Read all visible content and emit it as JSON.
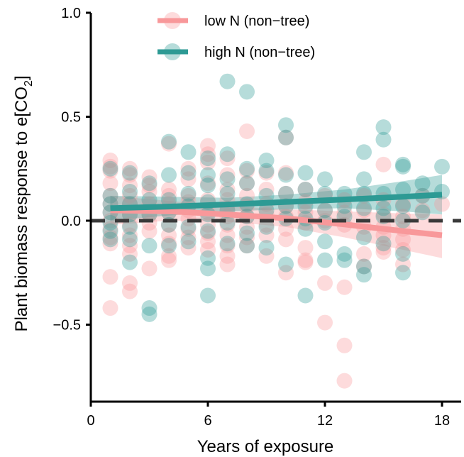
{
  "chart_data": {
    "type": "scatter",
    "title": "",
    "xlabel": "Years of exposure",
    "ylabel_main": "Plant biomass response to e[CO",
    "ylabel_sub": "2",
    "ylabel_close": "]",
    "xlim": [
      0,
      19
    ],
    "ylim": [
      -0.87,
      1.0
    ],
    "xticks": [
      0,
      6,
      12,
      18
    ],
    "xtick_labels": [
      "0",
      "6",
      "12",
      "18"
    ],
    "yticks": [
      1.0,
      0.5,
      0.0,
      -0.5
    ],
    "ytick_labels": [
      "1.0",
      "0.5",
      "0.0",
      "−0.5"
    ],
    "reference_line_y": 0,
    "grid": false,
    "legend_position": "top",
    "series": [
      {
        "name": "low N (non−tree)",
        "color": "#F8989A",
        "points": [
          [
            1,
            0.29
          ],
          [
            1,
            0.26
          ],
          [
            1,
            0.24
          ],
          [
            1,
            0.18
          ],
          [
            1,
            0.12
          ],
          [
            1,
            0.08
          ],
          [
            1,
            0.04
          ],
          [
            1,
            0.0
          ],
          [
            1,
            -0.04
          ],
          [
            1,
            -0.08
          ],
          [
            1,
            -0.11
          ],
          [
            1,
            -0.27
          ],
          [
            1,
            -0.42
          ],
          [
            2,
            0.25
          ],
          [
            2,
            0.22
          ],
          [
            2,
            0.17
          ],
          [
            2,
            0.12
          ],
          [
            2,
            0.08
          ],
          [
            2,
            0.03
          ],
          [
            2,
            -0.02
          ],
          [
            2,
            -0.07
          ],
          [
            2,
            -0.12
          ],
          [
            2,
            -0.16
          ],
          [
            2,
            -0.3
          ],
          [
            2,
            -0.34
          ],
          [
            3,
            0.21
          ],
          [
            3,
            0.17
          ],
          [
            3,
            0.14
          ],
          [
            3,
            0.08
          ],
          [
            3,
            0.03
          ],
          [
            3,
            -0.01
          ],
          [
            3,
            -0.05
          ],
          [
            3,
            -0.23
          ],
          [
            4,
            0.37
          ],
          [
            4,
            0.15
          ],
          [
            4,
            0.12
          ],
          [
            4,
            0.08
          ],
          [
            4,
            0.04
          ],
          [
            4,
            -0.02
          ],
          [
            4,
            -0.07
          ],
          [
            4,
            -0.11
          ],
          [
            4,
            -0.17
          ],
          [
            4,
            -0.19
          ],
          [
            5,
            0.25
          ],
          [
            5,
            0.2
          ],
          [
            5,
            0.12
          ],
          [
            5,
            0.09
          ],
          [
            5,
            0.05
          ],
          [
            5,
            0.01
          ],
          [
            5,
            -0.04
          ],
          [
            5,
            -0.08
          ],
          [
            5,
            -0.13
          ],
          [
            6,
            0.36
          ],
          [
            6,
            0.32
          ],
          [
            6,
            0.28
          ],
          [
            6,
            0.18
          ],
          [
            6,
            0.1
          ],
          [
            6,
            0.04
          ],
          [
            6,
            -0.02
          ],
          [
            6,
            -0.06
          ],
          [
            6,
            -0.1
          ],
          [
            6,
            -0.14
          ],
          [
            7,
            0.3
          ],
          [
            7,
            0.22
          ],
          [
            7,
            0.15
          ],
          [
            7,
            0.1
          ],
          [
            7,
            0.06
          ],
          [
            7,
            0.02
          ],
          [
            7,
            -0.02
          ],
          [
            7,
            -0.07
          ],
          [
            7,
            -0.12
          ],
          [
            7,
            -0.17
          ],
          [
            7,
            -0.21
          ],
          [
            8,
            0.43
          ],
          [
            8,
            0.24
          ],
          [
            8,
            0.18
          ],
          [
            8,
            0.12
          ],
          [
            8,
            0.07
          ],
          [
            8,
            0.02
          ],
          [
            8,
            -0.03
          ],
          [
            8,
            -0.08
          ],
          [
            8,
            -0.12
          ],
          [
            9,
            0.23
          ],
          [
            9,
            0.15
          ],
          [
            9,
            0.08
          ],
          [
            9,
            0.03
          ],
          [
            9,
            -0.02
          ],
          [
            9,
            -0.07
          ],
          [
            9,
            -0.17
          ],
          [
            10,
            0.4
          ],
          [
            10,
            0.23
          ],
          [
            10,
            0.13
          ],
          [
            10,
            0.07
          ],
          [
            10,
            0.02
          ],
          [
            10,
            -0.04
          ],
          [
            10,
            -0.09
          ],
          [
            10,
            -0.25
          ],
          [
            11,
            0.15
          ],
          [
            11,
            0.09
          ],
          [
            11,
            0.04
          ],
          [
            11,
            -0.01
          ],
          [
            11,
            -0.13
          ],
          [
            11,
            -0.19
          ],
          [
            11,
            -0.2
          ],
          [
            12,
            0.12
          ],
          [
            12,
            0.05
          ],
          [
            12,
            0.0
          ],
          [
            12,
            -0.3
          ],
          [
            12,
            -0.49
          ],
          [
            13,
            0.1
          ],
          [
            13,
            0.04
          ],
          [
            13,
            -0.02
          ],
          [
            13,
            -0.32
          ],
          [
            13,
            -0.6
          ],
          [
            13,
            -0.77
          ],
          [
            14,
            0.12
          ],
          [
            14,
            0.05
          ],
          [
            14,
            -0.03
          ],
          [
            14,
            -0.16
          ],
          [
            14,
            -0.22
          ],
          [
            15,
            0.27
          ],
          [
            15,
            0.1
          ],
          [
            15,
            0.03
          ],
          [
            15,
            -0.03
          ],
          [
            15,
            -0.07
          ],
          [
            15,
            -0.13
          ],
          [
            15,
            -0.15
          ],
          [
            16,
            0.08
          ],
          [
            16,
            0.02
          ],
          [
            16,
            -0.04
          ],
          [
            16,
            -0.09
          ],
          [
            16,
            -0.14
          ],
          [
            16,
            -0.21
          ],
          [
            17,
            0.12
          ],
          [
            17,
            0.05
          ],
          [
            18,
            0.08
          ]
        ],
        "fit_line": [
          [
            1,
            0.05
          ],
          [
            4,
            0.045
          ],
          [
            7,
            0.03
          ],
          [
            10,
            0.012
          ],
          [
            13,
            -0.018
          ],
          [
            16,
            -0.05
          ],
          [
            18,
            -0.07
          ]
        ],
        "ci_upper": [
          [
            1,
            0.12
          ],
          [
            4,
            0.095
          ],
          [
            7,
            0.07
          ],
          [
            10,
            0.055
          ],
          [
            13,
            0.045
          ],
          [
            16,
            0.035
          ],
          [
            18,
            0.03
          ]
        ],
        "ci_lower": [
          [
            1,
            -0.02
          ],
          [
            4,
            0.0
          ],
          [
            7,
            -0.005
          ],
          [
            10,
            -0.03
          ],
          [
            13,
            -0.08
          ],
          [
            16,
            -0.14
          ],
          [
            18,
            -0.18
          ]
        ]
      },
      {
        "name": "high N (non−tree)",
        "color": "#2D9A94",
        "points": [
          [
            1,
            0.25
          ],
          [
            1,
            0.12
          ],
          [
            1,
            0.08
          ],
          [
            1,
            0.04
          ],
          [
            1,
            -0.01
          ],
          [
            1,
            -0.05
          ],
          [
            1,
            -0.09
          ],
          [
            2,
            0.23
          ],
          [
            2,
            0.14
          ],
          [
            2,
            0.08
          ],
          [
            2,
            0.03
          ],
          [
            2,
            -0.03
          ],
          [
            2,
            -0.09
          ],
          [
            2,
            -0.2
          ],
          [
            3,
            0.18
          ],
          [
            3,
            0.1
          ],
          [
            3,
            0.03
          ],
          [
            3,
            -0.12
          ],
          [
            3,
            -0.42
          ],
          [
            3,
            -0.45
          ],
          [
            4,
            0.38
          ],
          [
            4,
            0.22
          ],
          [
            4,
            0.1
          ],
          [
            4,
            0.04
          ],
          [
            4,
            -0.02
          ],
          [
            4,
            -0.12
          ],
          [
            5,
            0.33
          ],
          [
            5,
            0.23
          ],
          [
            5,
            0.13
          ],
          [
            5,
            0.07
          ],
          [
            5,
            -0.03
          ],
          [
            5,
            -0.1
          ],
          [
            6,
            0.3
          ],
          [
            6,
            0.22
          ],
          [
            6,
            0.17
          ],
          [
            6,
            0.09
          ],
          [
            6,
            0.03
          ],
          [
            6,
            -0.05
          ],
          [
            6,
            -0.18
          ],
          [
            6,
            -0.23
          ],
          [
            6,
            -0.36
          ],
          [
            7,
            0.67
          ],
          [
            7,
            0.32
          ],
          [
            7,
            0.2
          ],
          [
            7,
            0.13
          ],
          [
            7,
            0.05
          ],
          [
            7,
            -0.01
          ],
          [
            7,
            -0.11
          ],
          [
            8,
            0.62
          ],
          [
            8,
            0.25
          ],
          [
            8,
            0.18
          ],
          [
            8,
            0.08
          ],
          [
            8,
            0.02
          ],
          [
            8,
            -0.06
          ],
          [
            8,
            -0.12
          ],
          [
            9,
            0.29
          ],
          [
            9,
            0.24
          ],
          [
            9,
            0.12
          ],
          [
            9,
            0.05
          ],
          [
            9,
            -0.03
          ],
          [
            9,
            -0.13
          ],
          [
            10,
            0.46
          ],
          [
            10,
            0.4
          ],
          [
            10,
            0.22
          ],
          [
            10,
            0.13
          ],
          [
            10,
            0.07
          ],
          [
            10,
            0.01
          ],
          [
            10,
            -0.21
          ],
          [
            11,
            0.23
          ],
          [
            11,
            0.15
          ],
          [
            11,
            0.07
          ],
          [
            11,
            0.01
          ],
          [
            11,
            -0.04
          ],
          [
            11,
            -0.36
          ],
          [
            12,
            0.2
          ],
          [
            12,
            0.13
          ],
          [
            12,
            0.05
          ],
          [
            12,
            -0.01
          ],
          [
            12,
            -0.1
          ],
          [
            12,
            -0.19
          ],
          [
            13,
            0.13
          ],
          [
            13,
            0.07
          ],
          [
            13,
            0.02
          ],
          [
            13,
            -0.16
          ],
          [
            13,
            -0.19
          ],
          [
            14,
            0.33
          ],
          [
            14,
            0.2
          ],
          [
            14,
            0.13
          ],
          [
            14,
            0.06
          ],
          [
            14,
            -0.08
          ],
          [
            14,
            -0.22
          ],
          [
            14,
            -0.26
          ],
          [
            15,
            0.45
          ],
          [
            15,
            0.39
          ],
          [
            15,
            0.13
          ],
          [
            15,
            0.06
          ],
          [
            15,
            0.02
          ],
          [
            15,
            -0.11
          ],
          [
            16,
            0.27
          ],
          [
            16,
            0.26
          ],
          [
            16,
            0.15
          ],
          [
            16,
            0.07
          ],
          [
            16,
            0.0
          ],
          [
            16,
            -0.16
          ],
          [
            16,
            -0.25
          ],
          [
            17,
            0.18
          ],
          [
            17,
            0.12
          ],
          [
            17,
            0.04
          ],
          [
            18,
            0.26
          ],
          [
            18,
            0.14
          ]
        ],
        "fit_line": [
          [
            1,
            0.06
          ],
          [
            4,
            0.068
          ],
          [
            7,
            0.078
          ],
          [
            10,
            0.09
          ],
          [
            13,
            0.102
          ],
          [
            16,
            0.115
          ],
          [
            18,
            0.125
          ]
        ],
        "ci_upper": [
          [
            1,
            0.12
          ],
          [
            4,
            0.115
          ],
          [
            7,
            0.11
          ],
          [
            10,
            0.125
          ],
          [
            13,
            0.15
          ],
          [
            16,
            0.19
          ],
          [
            18,
            0.22
          ]
        ],
        "ci_lower": [
          [
            1,
            0.0
          ],
          [
            4,
            0.025
          ],
          [
            7,
            0.045
          ],
          [
            10,
            0.055
          ],
          [
            13,
            0.06
          ],
          [
            16,
            0.045
          ],
          [
            18,
            0.03
          ]
        ]
      }
    ]
  }
}
